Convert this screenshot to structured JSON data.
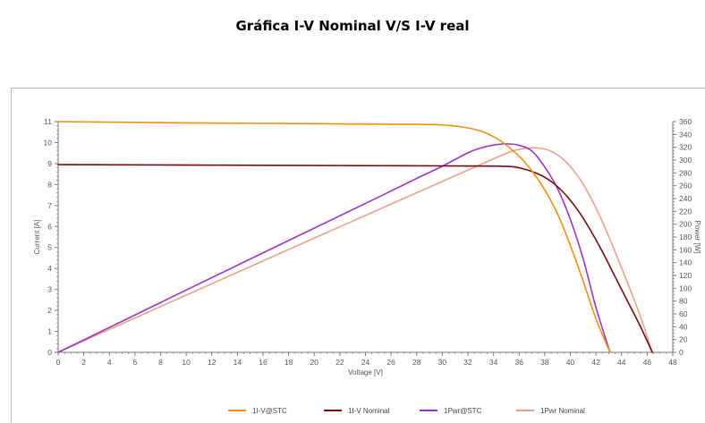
{
  "page": {
    "title": "Gráfica I-V Nominal V/S I-V real"
  },
  "chart_data": {
    "type": "line",
    "title": "",
    "xlabel": "Voltage [V]",
    "ylabel": "Current [A]",
    "y2label": "Power [W]",
    "xlim": [
      0,
      48
    ],
    "ylim": [
      0,
      11
    ],
    "y2lim": [
      0,
      360
    ],
    "x_ticks": [
      0,
      2,
      4,
      6,
      8,
      10,
      12,
      14,
      16,
      18,
      20,
      22,
      24,
      26,
      28,
      30,
      32,
      34,
      36,
      38,
      40,
      42,
      44,
      46,
      48
    ],
    "y_ticks": [
      0,
      1,
      2,
      3,
      4,
      5,
      6,
      7,
      8,
      9,
      10,
      11
    ],
    "y2_ticks": [
      0,
      20,
      40,
      60,
      80,
      100,
      120,
      140,
      160,
      180,
      200,
      220,
      240,
      260,
      280,
      300,
      320,
      340,
      360
    ],
    "grid": false,
    "legend_position": "bottom",
    "series": [
      {
        "name": "1I-V@STC",
        "axis": "left",
        "color": "#f0900f",
        "x": [
          0,
          5,
          10,
          15,
          20,
          25,
          28,
          30,
          31.5,
          33,
          34.5,
          36,
          37,
          38,
          39,
          40,
          41,
          42,
          43.1
        ],
        "y": [
          11.0,
          10.97,
          10.94,
          10.92,
          10.9,
          10.88,
          10.87,
          10.84,
          10.75,
          10.55,
          10.1,
          9.35,
          8.65,
          7.75,
          6.6,
          5.1,
          3.4,
          1.6,
          0
        ]
      },
      {
        "name": "1I-V Nominal",
        "axis": "left",
        "color": "#7a0a0a",
        "x": [
          0,
          5,
          10,
          15,
          20,
          25,
          30,
          34,
          35.5,
          36.5,
          37.5,
          38.5,
          39.5,
          40.5,
          41.5,
          42.5,
          43.5,
          44.5,
          45.5,
          46.4
        ],
        "y": [
          8.95,
          8.94,
          8.93,
          8.92,
          8.91,
          8.9,
          8.89,
          8.88,
          8.85,
          8.72,
          8.5,
          8.15,
          7.6,
          6.85,
          5.9,
          4.8,
          3.6,
          2.4,
          1.2,
          0
        ]
      },
      {
        "name": "1Pwr@STC",
        "axis": "right",
        "color": "#9a35c8",
        "x": [
          0,
          5,
          10,
          15,
          20,
          25,
          28,
          30,
          32,
          33,
          34,
          35,
          36,
          37,
          38,
          39,
          40,
          41,
          42,
          43.1
        ],
        "y": [
          0,
          48.5,
          97.2,
          145.6,
          193.8,
          242,
          271.4,
          290.4,
          311.3,
          318.8,
          323.5,
          325.3,
          323.1,
          313.9,
          289.3,
          255.5,
          207.4,
          146.2,
          70,
          0
        ]
      },
      {
        "name": "1Pwr Nominal",
        "axis": "right",
        "color": "#e8a388",
        "x": [
          0,
          5,
          10,
          15,
          20,
          25,
          30,
          34,
          35.5,
          36.5,
          37.5,
          38.5,
          39.5,
          40.5,
          41.5,
          42.5,
          43.5,
          44.5,
          45.5,
          46.4
        ],
        "y": [
          0,
          44.7,
          89.3,
          133.8,
          178.2,
          222.5,
          266.7,
          301.9,
          314.2,
          318.3,
          318.8,
          313.8,
          300.2,
          277.4,
          244.9,
          204,
          156.6,
          106.8,
          54.6,
          0
        ]
      }
    ]
  },
  "colors": {
    "axis": "#7a7a7a",
    "tick_label": "#555555",
    "frame": "#b5b5b5"
  }
}
